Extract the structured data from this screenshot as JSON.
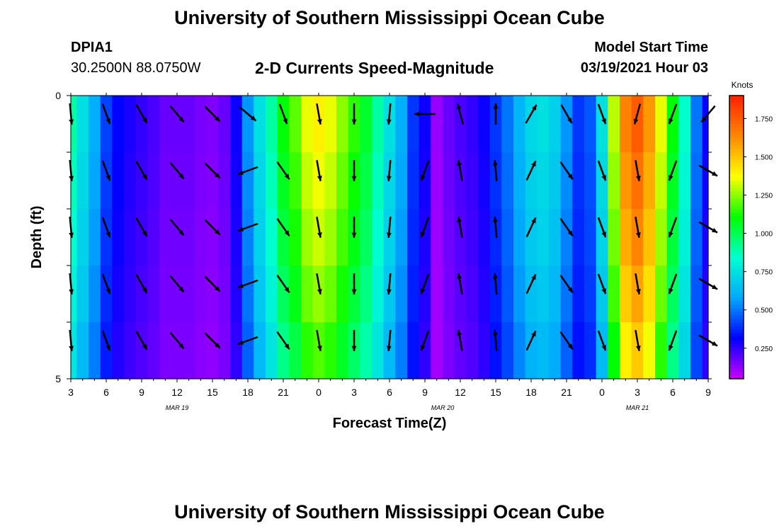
{
  "header": {
    "title": "University of Southern Mississippi Ocean Cube",
    "station_id": "DPIA1",
    "station_coords": "30.2500N 88.0750W",
    "plot_title": "2-D Currents Speed-Magnitude",
    "start_label": "Model Start Time",
    "start_value": "03/19/2021 Hour 03"
  },
  "footer": {
    "title": "University of Southern Mississippi Ocean Cube"
  },
  "chart_data": {
    "type": "heatmap",
    "title": "2-D Currents Speed-Magnitude",
    "xlabel": "Forecast Time(Z)",
    "ylabel": "Depth (ft)",
    "xlim": [
      0,
      54
    ],
    "ylim": [
      5,
      0
    ],
    "x_ticks": [
      "3",
      "6",
      "9",
      "12",
      "15",
      "18",
      "21",
      "0",
      "3",
      "6",
      "9",
      "12",
      "15",
      "18",
      "21",
      "0",
      "3",
      "6",
      "9"
    ],
    "y_ticks": [
      "0",
      "5"
    ],
    "date_labels": [
      {
        "text": "MAR 19",
        "hour": 9
      },
      {
        "text": "MAR 20",
        "hour": 31.5
      },
      {
        "text": "MAR 21",
        "hour": 48
      }
    ],
    "colorbar": {
      "label": "Knots",
      "min": 0.05,
      "max": 1.9,
      "ticks": [
        "0.250",
        "0.500",
        "0.750",
        "1.000",
        "1.250",
        "1.500",
        "1.750"
      ],
      "tick_values": [
        0.25,
        0.5,
        0.75,
        1.0,
        1.25,
        1.5,
        1.75
      ],
      "colors": [
        "#cc00ff",
        "#0000ff",
        "#00a8ff",
        "#00ffd0",
        "#00ff00",
        "#ffff00",
        "#ff8800",
        "#ff2200"
      ]
    },
    "speed_profile": {
      "hours": [
        0,
        1,
        2,
        3,
        4,
        5,
        6,
        7,
        8,
        9,
        10,
        11,
        12,
        13,
        14,
        15,
        16,
        17,
        18,
        19,
        20,
        21,
        22,
        23,
        24,
        25,
        26,
        27,
        28,
        29,
        30,
        31,
        32,
        33,
        34,
        35,
        36,
        37,
        38,
        39,
        40,
        41,
        42,
        43,
        44,
        45,
        46,
        47,
        48,
        49,
        50,
        51,
        52,
        53,
        54
      ],
      "speed": [
        0.9,
        0.75,
        0.6,
        0.42,
        0.32,
        0.28,
        0.25,
        0.22,
        0.18,
        0.18,
        0.18,
        0.16,
        0.15,
        0.18,
        0.3,
        0.55,
        0.75,
        0.9,
        1.1,
        1.2,
        1.35,
        1.4,
        1.35,
        1.25,
        1.15,
        1.05,
        0.9,
        0.75,
        0.6,
        0.4,
        0.3,
        0.12,
        0.18,
        0.22,
        0.25,
        0.3,
        0.4,
        0.5,
        0.62,
        0.72,
        0.75,
        0.7,
        0.55,
        0.4,
        0.45,
        0.75,
        1.3,
        1.65,
        1.75,
        1.6,
        1.35,
        1.1,
        0.85,
        0.5,
        0.3
      ]
    },
    "depth_factors": [
      1.0,
      0.97,
      0.94,
      0.9,
      0.85
    ],
    "vectors": {
      "hours": [
        0,
        3,
        6,
        9,
        12,
        15,
        18,
        21,
        24,
        27,
        30,
        33,
        36,
        39,
        42,
        45,
        48,
        51,
        54
      ],
      "directions_deg": [
        175,
        160,
        150,
        140,
        135,
        250,
        145,
        170,
        180,
        185,
        200,
        350,
        355,
        25,
        145,
        160,
        170,
        200,
        120
      ],
      "surface_directions_deg": [
        175,
        160,
        150,
        140,
        135,
        130,
        160,
        170,
        180,
        185,
        270,
        345,
        0,
        30,
        150,
        160,
        195,
        200,
        220
      ],
      "depths_ft": [
        0.2,
        1.2,
        2.2,
        3.2,
        4.2
      ]
    }
  }
}
